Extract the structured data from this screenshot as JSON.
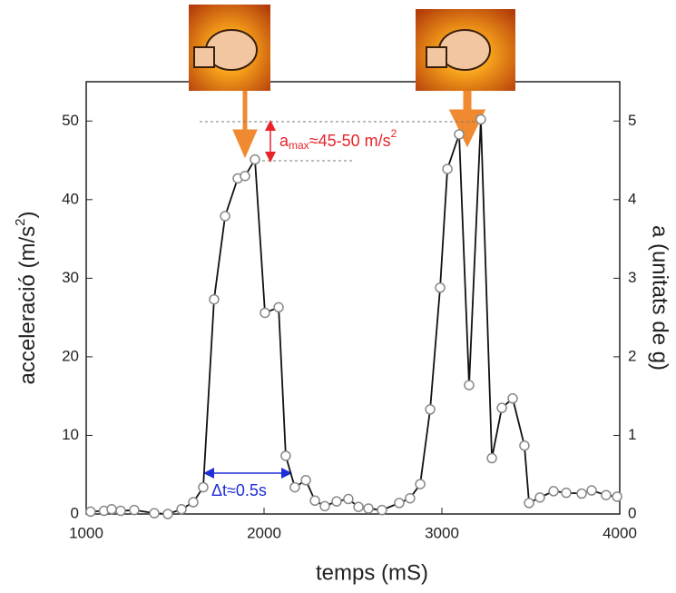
{
  "chart_data": {
    "type": "line",
    "x_label": "temps (mS)",
    "y_label": [
      "acceleració (m/s",
      "2",
      ")"
    ],
    "y2_label": "a (unitats de g)",
    "annotations": {
      "amax": [
        "a",
        "max",
        "≈45-50 m/s",
        "2"
      ],
      "dt": "Δt≈0.5s"
    },
    "xlim": [
      1000,
      4000
    ],
    "xticks": [
      1000,
      2000,
      3000,
      4000
    ],
    "ylim": [
      0,
      55
    ],
    "yticks": [
      0,
      10,
      20,
      30,
      40,
      50
    ],
    "y2lim": [
      0,
      5.5
    ],
    "y2ticks": [
      0,
      1,
      2,
      3,
      4,
      5
    ],
    "series": [
      {
        "color": "#111111",
        "marker_color": "#888888",
        "x": [
          1025,
          1100,
          1143,
          1194,
          1270,
          1383,
          1459,
          1536,
          1602,
          1658,
          1719,
          1781,
          1852,
          1893,
          1949,
          2005,
          2082,
          2122,
          2173,
          2235,
          2286,
          2342,
          2408,
          2474,
          2531,
          2587,
          2663,
          2760,
          2821,
          2878,
          2934,
          2990,
          3031,
          3097,
          3153,
          3219,
          3281,
          3337,
          3398,
          3464,
          3490,
          3551,
          3628,
          3699,
          3786,
          3842,
          3923,
          3985
        ],
        "values": [
          0.3,
          0.4,
          0.6,
          0.4,
          0.5,
          0.1,
          0,
          0.6,
          1.5,
          3.4,
          27.3,
          37.9,
          42.7,
          43.0,
          45.1,
          25.6,
          26.3,
          7.4,
          3.4,
          4.3,
          1.7,
          1.0,
          1.6,
          1.9,
          0.9,
          0.7,
          0.5,
          1.4,
          2.0,
          3.8,
          13.3,
          28.8,
          43.9,
          48.3,
          16.4,
          50.2,
          7.1,
          13.5,
          14.7,
          8.7,
          1.4,
          2.1,
          2.9,
          2.7,
          2.6,
          3.0,
          2.4,
          2.2
        ]
      }
    ]
  }
}
